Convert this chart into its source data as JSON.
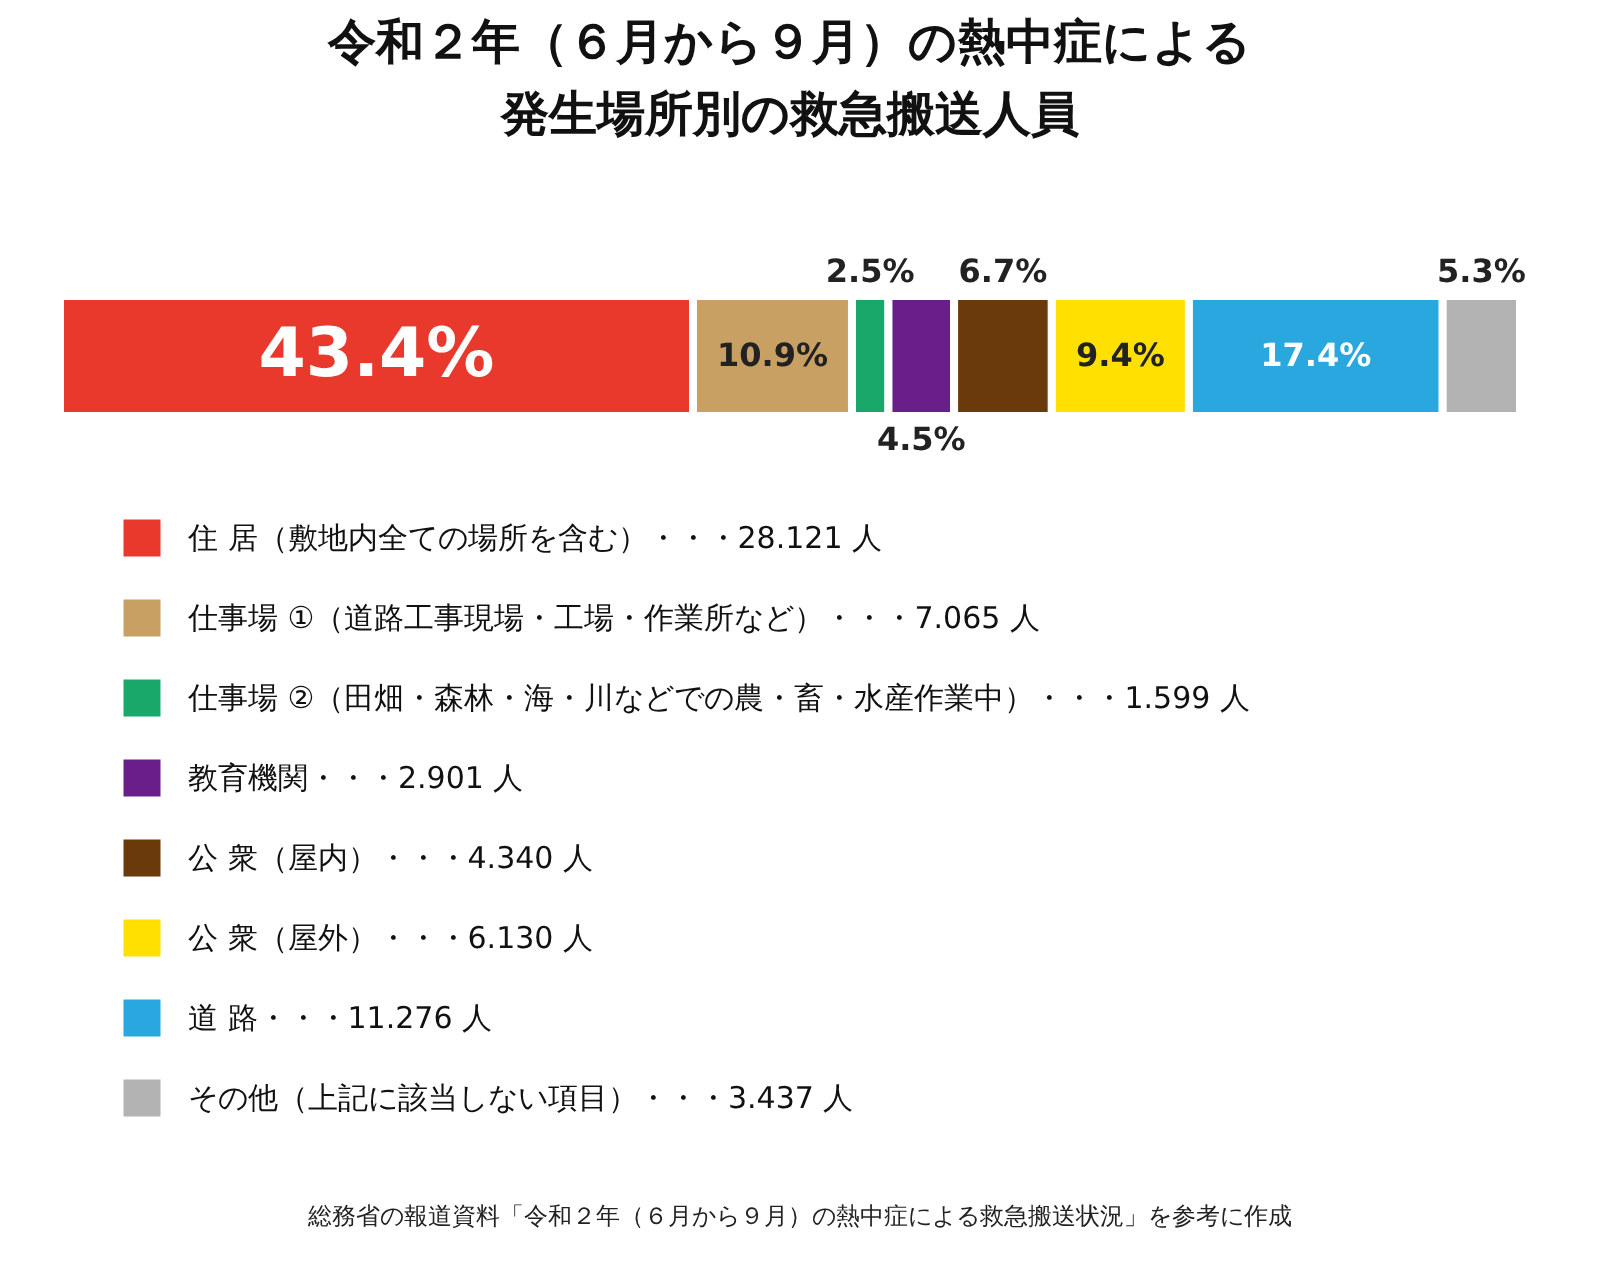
{
  "chart_data": {
    "type": "bar",
    "stacked": true,
    "orientation": "horizontal",
    "title": "令和２年（６月から９月）の熱中症による発生場所別の救急搬送人員",
    "categories": [
      null
    ],
    "legend": "bottom",
    "series": [
      {
        "name": "住 居（敷地内全ての場所を含む）・・・28.121 人",
        "color": "#e8392c",
        "values": [
          43.4
        ],
        "value_labels": [
          "43.4%"
        ]
      },
      {
        "name": "仕事場 ①（道路工事現場・工場・作業所など）・・・7.065 人",
        "color": "#c9a063",
        "values": [
          10.9
        ],
        "value_labels": [
          "10.9%"
        ]
      },
      {
        "name": "仕事場 ②（田畑・森林・海・川などでの農・畜・水産作業中）・・・1.599 人",
        "color": "#1aa86a",
        "values": [
          2.5
        ],
        "value_labels": [
          "2.5%"
        ]
      },
      {
        "name": "教育機関・・・2.901 人",
        "color": "#6a1e8a",
        "values": [
          4.5
        ],
        "value_labels": [
          "4.5%"
        ]
      },
      {
        "name": "公 衆（屋内）・・・4.340 人",
        "color": "#6b3a0b",
        "values": [
          6.7
        ],
        "value_labels": [
          "6.7%"
        ]
      },
      {
        "name": "公 衆（屋外）・・・6.130 人",
        "color": "#ffe000",
        "values": [
          9.4
        ],
        "value_labels": [
          "9.4%"
        ]
      },
      {
        "name": "道 路・・・11.276 人",
        "color": "#29a8e0",
        "values": [
          17.4
        ],
        "value_labels": [
          "17.4%"
        ]
      },
      {
        "name": "その他（上記に該当しない項目）・・・3.437 人",
        "color": "#b3b3b3",
        "values": [
          5.3
        ],
        "value_labels": [
          "5.3%"
        ]
      }
    ],
    "annotations": [
      "総務省の報道資料「令和２年（６月から９月）の熱中症による救急搬送状況」を参考に作成"
    ]
  }
}
